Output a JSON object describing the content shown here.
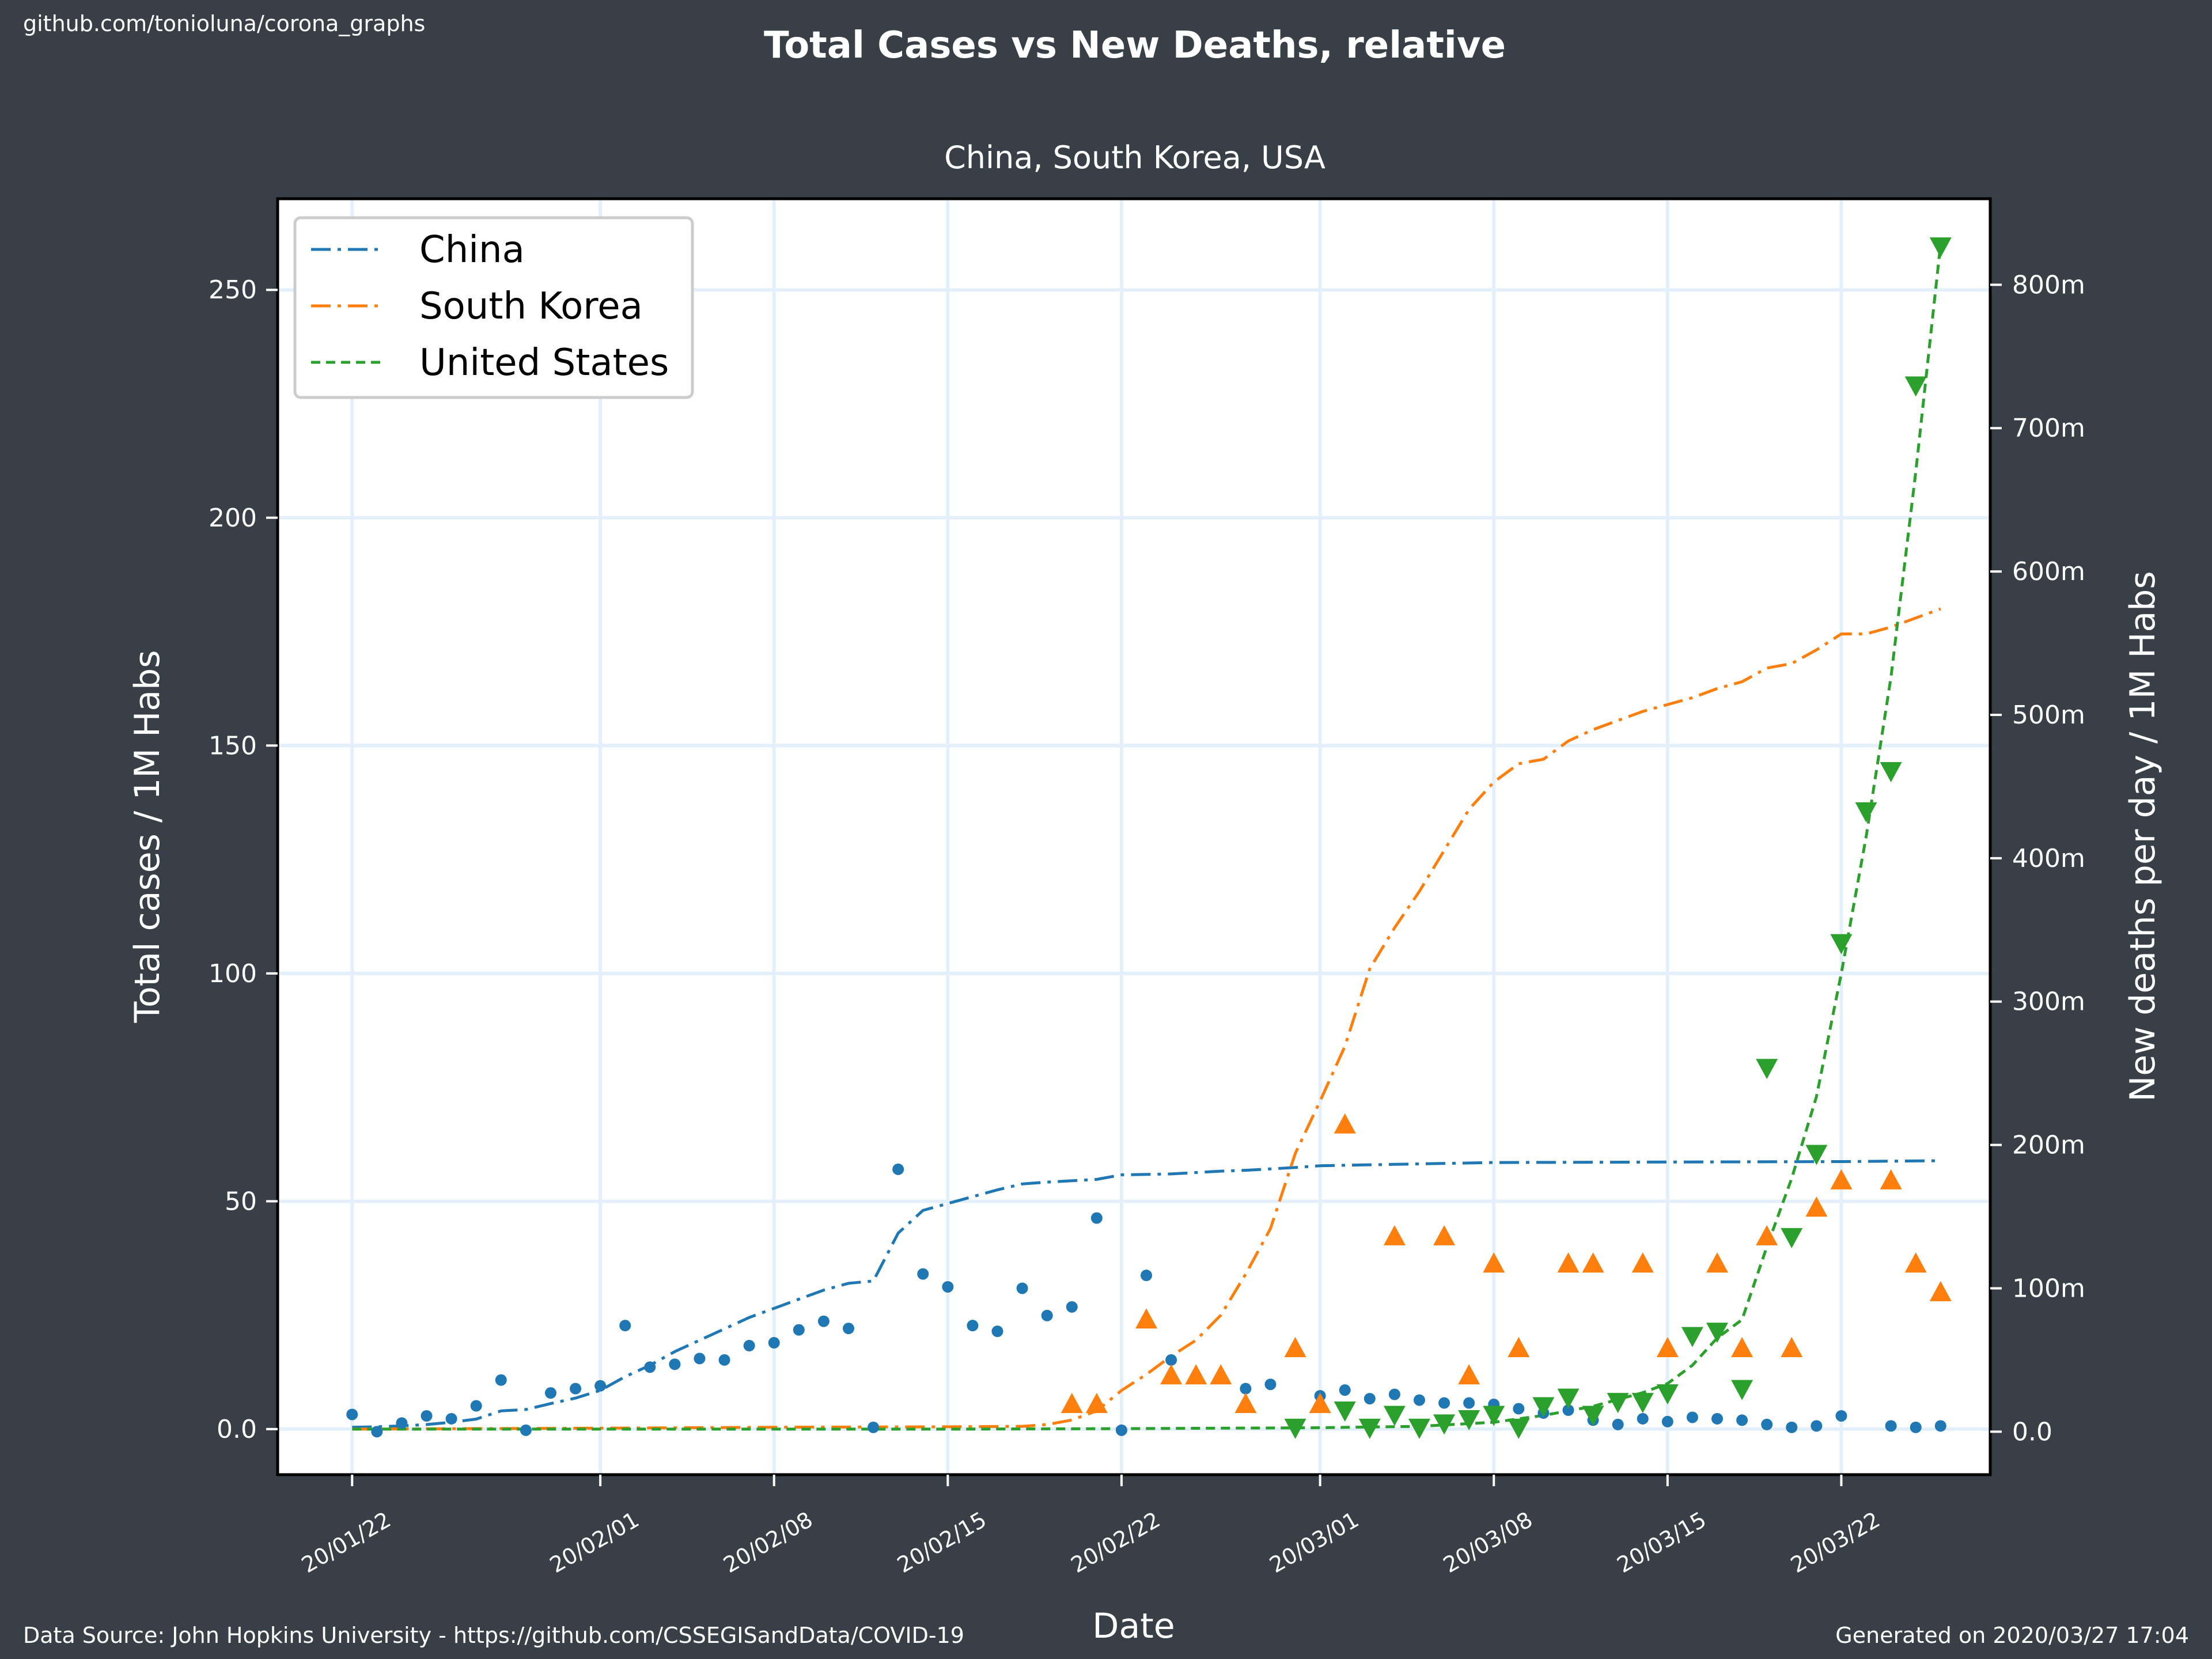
{
  "source_link": "github.com/tonioluna/corona_graphs",
  "footer_left": "Data Source: John Hopkins University - https://github.com/CSSEGISandData/COVID-19",
  "footer_right": "Generated on 2020/03/27 17:04",
  "colors": {
    "background": "#393f47",
    "plot_bg": "#ffffff",
    "grid": "#e3f0fb",
    "China": "#1f77b4",
    "South Korea": "#ff7f0e",
    "United States": "#2ca02c"
  },
  "chart_data": {
    "type": "line",
    "title": "Total Cases vs New Deaths, relative",
    "subtitle": "China, South Korea, USA",
    "xlabel": "Date",
    "ylabel": "Total cases / 1M Habs",
    "y2label": "New deaths per day / 1M Habs",
    "x_ticks": [
      "20/01/22",
      "20/02/01",
      "20/02/08",
      "20/02/15",
      "20/02/22",
      "20/03/01",
      "20/03/08",
      "20/03/15",
      "20/03/22"
    ],
    "xlim": [
      "2020-01-19",
      "2020-03-28"
    ],
    "ylim": [
      -10,
      270
    ],
    "y_ticks": [
      "0.0",
      "50",
      "100",
      "150",
      "200",
      "250"
    ],
    "y2lim": [
      -0.03,
      0.86
    ],
    "y2_ticks": [
      "0.0",
      "100m",
      "200m",
      "300m",
      "400m",
      "500m",
      "600m",
      "700m",
      "800m"
    ],
    "grid": true,
    "legend_position": "top-left",
    "series": [
      {
        "name": "China",
        "axis": "left",
        "style": "dashdot",
        "marker": "none",
        "points": [
          [
            "2020-01-22",
            0.4
          ],
          [
            "2020-01-23",
            0.5
          ],
          [
            "2020-01-24",
            0.7
          ],
          [
            "2020-01-25",
            1.0
          ],
          [
            "2020-01-26",
            1.5
          ],
          [
            "2020-01-27",
            2.2
          ],
          [
            "2020-01-28",
            4.0
          ],
          [
            "2020-01-29",
            4.3
          ],
          [
            "2020-01-30",
            5.6
          ],
          [
            "2020-01-31",
            6.8
          ],
          [
            "2020-02-01",
            8.5
          ],
          [
            "2020-02-02",
            11.5
          ],
          [
            "2020-02-03",
            14.0
          ],
          [
            "2020-02-04",
            17.0
          ],
          [
            "2020-02-05",
            19.5
          ],
          [
            "2020-02-06",
            22.0
          ],
          [
            "2020-02-07",
            24.5
          ],
          [
            "2020-02-08",
            26.5
          ],
          [
            "2020-02-09",
            28.5
          ],
          [
            "2020-02-10",
            30.5
          ],
          [
            "2020-02-11",
            32.0
          ],
          [
            "2020-02-12",
            32.5
          ],
          [
            "2020-02-13",
            43.0
          ],
          [
            "2020-02-14",
            48.0
          ],
          [
            "2020-02-15",
            49.5
          ],
          [
            "2020-02-16",
            51.0
          ],
          [
            "2020-02-17",
            52.5
          ],
          [
            "2020-02-18",
            53.8
          ],
          [
            "2020-02-19",
            54.2
          ],
          [
            "2020-02-20",
            54.5
          ],
          [
            "2020-02-21",
            54.8
          ],
          [
            "2020-02-22",
            55.8
          ],
          [
            "2020-02-23",
            55.9
          ],
          [
            "2020-02-24",
            56.0
          ],
          [
            "2020-02-25",
            56.3
          ],
          [
            "2020-02-26",
            56.6
          ],
          [
            "2020-02-27",
            56.8
          ],
          [
            "2020-02-28",
            57.1
          ],
          [
            "2020-02-29",
            57.4
          ],
          [
            "2020-03-01",
            57.8
          ],
          [
            "2020-03-04",
            58.1
          ],
          [
            "2020-03-08",
            58.5
          ],
          [
            "2020-03-15",
            58.6
          ],
          [
            "2020-03-22",
            58.7
          ],
          [
            "2020-03-26",
            58.9
          ]
        ]
      },
      {
        "name": "South Korea",
        "axis": "left",
        "style": "dashdot",
        "marker": "none",
        "points": [
          [
            "2020-01-22",
            0.0
          ],
          [
            "2020-02-01",
            0.2
          ],
          [
            "2020-02-08",
            0.4
          ],
          [
            "2020-02-15",
            0.5
          ],
          [
            "2020-02-18",
            0.6
          ],
          [
            "2020-02-19",
            1.0
          ],
          [
            "2020-02-20",
            2.0
          ],
          [
            "2020-02-21",
            4.0
          ],
          [
            "2020-02-22",
            8.5
          ],
          [
            "2020-02-23",
            12.0
          ],
          [
            "2020-02-24",
            16.0
          ],
          [
            "2020-02-25",
            19.5
          ],
          [
            "2020-02-26",
            25.0
          ],
          [
            "2020-02-27",
            34.0
          ],
          [
            "2020-02-28",
            44.0
          ],
          [
            "2020-02-29",
            60.5
          ],
          [
            "2020-03-01",
            72.0
          ],
          [
            "2020-03-02",
            84.0
          ],
          [
            "2020-03-03",
            101.0
          ],
          [
            "2020-03-04",
            110.0
          ],
          [
            "2020-03-05",
            118.0
          ],
          [
            "2020-03-06",
            127.0
          ],
          [
            "2020-03-07",
            136.0
          ],
          [
            "2020-03-08",
            142.0
          ],
          [
            "2020-03-09",
            146.0
          ],
          [
            "2020-03-10",
            147.0
          ],
          [
            "2020-03-11",
            151.0
          ],
          [
            "2020-03-12",
            153.5
          ],
          [
            "2020-03-13",
            155.5
          ],
          [
            "2020-03-14",
            157.5
          ],
          [
            "2020-03-15",
            159.0
          ],
          [
            "2020-03-16",
            160.5
          ],
          [
            "2020-03-17",
            162.5
          ],
          [
            "2020-03-18",
            164.0
          ],
          [
            "2020-03-19",
            167.0
          ],
          [
            "2020-03-20",
            168.0
          ],
          [
            "2020-03-21",
            171.0
          ],
          [
            "2020-03-22",
            174.5
          ],
          [
            "2020-03-23",
            174.5
          ],
          [
            "2020-03-24",
            176.0
          ],
          [
            "2020-03-25",
            178.0
          ],
          [
            "2020-03-26",
            180.0
          ]
        ]
      },
      {
        "name": "United States",
        "axis": "left",
        "style": "dashed",
        "marker": "none",
        "points": [
          [
            "2020-01-22",
            0.0
          ],
          [
            "2020-02-15",
            0.0
          ],
          [
            "2020-02-22",
            0.1
          ],
          [
            "2020-03-01",
            0.3
          ],
          [
            "2020-03-05",
            0.6
          ],
          [
            "2020-03-08",
            1.5
          ],
          [
            "2020-03-10",
            3.0
          ],
          [
            "2020-03-12",
            5.0
          ],
          [
            "2020-03-13",
            6.5
          ],
          [
            "2020-03-14",
            8.0
          ],
          [
            "2020-03-15",
            10.0
          ],
          [
            "2020-03-16",
            14.0
          ],
          [
            "2020-03-17",
            20.0
          ],
          [
            "2020-03-18",
            24.0
          ],
          [
            "2020-03-19",
            40.0
          ],
          [
            "2020-03-20",
            55.0
          ],
          [
            "2020-03-21",
            73.0
          ],
          [
            "2020-03-22",
            100.0
          ],
          [
            "2020-03-23",
            130.0
          ],
          [
            "2020-03-24",
            165.0
          ],
          [
            "2020-03-25",
            210.0
          ],
          [
            "2020-03-26",
            260.0
          ]
        ]
      },
      {
        "name": "China",
        "axis": "right",
        "style": "none",
        "marker": "circle",
        "points": [
          [
            "2020-01-22",
            0.012
          ],
          [
            "2020-01-23",
            0.0
          ],
          [
            "2020-01-24",
            0.006
          ],
          [
            "2020-01-25",
            0.011
          ],
          [
            "2020-01-26",
            0.009
          ],
          [
            "2020-01-27",
            0.018
          ],
          [
            "2020-01-28",
            0.036
          ],
          [
            "2020-01-29",
            0.001
          ],
          [
            "2020-01-30",
            0.027
          ],
          [
            "2020-01-31",
            0.03
          ],
          [
            "2020-02-01",
            0.032
          ],
          [
            "2020-02-02",
            0.074
          ],
          [
            "2020-02-03",
            0.045
          ],
          [
            "2020-02-04",
            0.047
          ],
          [
            "2020-02-05",
            0.051
          ],
          [
            "2020-02-06",
            0.05
          ],
          [
            "2020-02-07",
            0.06
          ],
          [
            "2020-02-08",
            0.062
          ],
          [
            "2020-02-09",
            0.071
          ],
          [
            "2020-02-10",
            0.077
          ],
          [
            "2020-02-11",
            0.072
          ],
          [
            "2020-02-12",
            0.003
          ],
          [
            "2020-02-13",
            0.183
          ],
          [
            "2020-02-14",
            0.11
          ],
          [
            "2020-02-15",
            0.101
          ],
          [
            "2020-02-16",
            0.074
          ],
          [
            "2020-02-17",
            0.07
          ],
          [
            "2020-02-18",
            0.1
          ],
          [
            "2020-02-19",
            0.081
          ],
          [
            "2020-02-20",
            0.087
          ],
          [
            "2020-02-21",
            0.149
          ],
          [
            "2020-02-22",
            0.001
          ],
          [
            "2020-02-23",
            0.109
          ],
          [
            "2020-02-24",
            0.05
          ],
          [
            "2020-02-27",
            0.03
          ],
          [
            "2020-02-28",
            0.033
          ],
          [
            "2020-03-01",
            0.025
          ],
          [
            "2020-03-02",
            0.029
          ],
          [
            "2020-03-03",
            0.023
          ],
          [
            "2020-03-04",
            0.026
          ],
          [
            "2020-03-05",
            0.022
          ],
          [
            "2020-03-06",
            0.02
          ],
          [
            "2020-03-07",
            0.02
          ],
          [
            "2020-03-08",
            0.019
          ],
          [
            "2020-03-09",
            0.016
          ],
          [
            "2020-03-10",
            0.013
          ],
          [
            "2020-03-11",
            0.015
          ],
          [
            "2020-03-12",
            0.008
          ],
          [
            "2020-03-13",
            0.005
          ],
          [
            "2020-03-14",
            0.009
          ],
          [
            "2020-03-15",
            0.007
          ],
          [
            "2020-03-16",
            0.01
          ],
          [
            "2020-03-17",
            0.009
          ],
          [
            "2020-03-18",
            0.008
          ],
          [
            "2020-03-19",
            0.005
          ],
          [
            "2020-03-20",
            0.003
          ],
          [
            "2020-03-21",
            0.004
          ],
          [
            "2020-03-22",
            0.011
          ],
          [
            "2020-03-24",
            0.004
          ],
          [
            "2020-03-25",
            0.003
          ],
          [
            "2020-03-26",
            0.004
          ]
        ]
      },
      {
        "name": "South Korea",
        "axis": "right",
        "style": "none",
        "marker": "triangle-up",
        "points": [
          [
            "2020-02-20",
            0.019
          ],
          [
            "2020-02-21",
            0.019
          ],
          [
            "2020-02-23",
            0.078
          ],
          [
            "2020-02-24",
            0.039
          ],
          [
            "2020-02-25",
            0.039
          ],
          [
            "2020-02-26",
            0.039
          ],
          [
            "2020-02-27",
            0.019
          ],
          [
            "2020-02-29",
            0.058
          ],
          [
            "2020-03-01",
            0.019
          ],
          [
            "2020-03-02",
            0.214
          ],
          [
            "2020-03-04",
            0.136
          ],
          [
            "2020-03-06",
            0.136
          ],
          [
            "2020-03-07",
            0.039
          ],
          [
            "2020-03-08",
            0.117
          ],
          [
            "2020-03-09",
            0.058
          ],
          [
            "2020-03-11",
            0.117
          ],
          [
            "2020-03-12",
            0.117
          ],
          [
            "2020-03-14",
            0.117
          ],
          [
            "2020-03-15",
            0.058
          ],
          [
            "2020-03-17",
            0.117
          ],
          [
            "2020-03-18",
            0.058
          ],
          [
            "2020-03-19",
            0.136
          ],
          [
            "2020-03-20",
            0.058
          ],
          [
            "2020-03-21",
            0.156
          ],
          [
            "2020-03-22",
            0.175
          ],
          [
            "2020-03-24",
            0.175
          ],
          [
            "2020-03-25",
            0.117
          ],
          [
            "2020-03-26",
            0.097
          ]
        ]
      },
      {
        "name": "United States",
        "axis": "right",
        "style": "none",
        "marker": "triangle-down",
        "points": [
          [
            "2020-02-29",
            0.003
          ],
          [
            "2020-03-02",
            0.015
          ],
          [
            "2020-03-03",
            0.003
          ],
          [
            "2020-03-04",
            0.012
          ],
          [
            "2020-03-05",
            0.003
          ],
          [
            "2020-03-06",
            0.006
          ],
          [
            "2020-03-07",
            0.009
          ],
          [
            "2020-03-08",
            0.012
          ],
          [
            "2020-03-09",
            0.003
          ],
          [
            "2020-03-10",
            0.018
          ],
          [
            "2020-03-11",
            0.024
          ],
          [
            "2020-03-12",
            0.012
          ],
          [
            "2020-03-13",
            0.021
          ],
          [
            "2020-03-14",
            0.021
          ],
          [
            "2020-03-15",
            0.027
          ],
          [
            "2020-03-16",
            0.067
          ],
          [
            "2020-03-17",
            0.07
          ],
          [
            "2020-03-18",
            0.03
          ],
          [
            "2020-03-19",
            0.254
          ],
          [
            "2020-03-20",
            0.136
          ],
          [
            "2020-03-21",
            0.194
          ],
          [
            "2020-03-22",
            0.341
          ],
          [
            "2020-03-23",
            0.433
          ],
          [
            "2020-03-24",
            0.461
          ],
          [
            "2020-03-25",
            0.73
          ],
          [
            "2020-03-26",
            0.827
          ]
        ]
      }
    ]
  }
}
